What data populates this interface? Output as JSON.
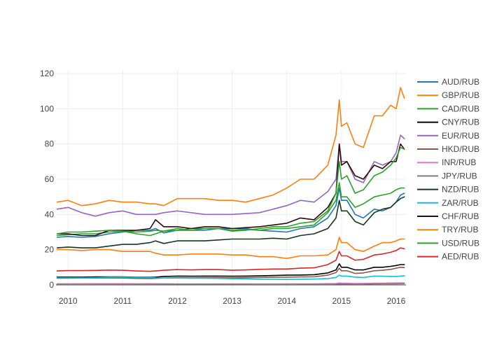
{
  "chart_data": {
    "type": "line",
    "title": "",
    "xlabel": "",
    "ylabel": "",
    "xlim": [
      2009.78,
      2016.18
    ],
    "ylim": [
      -2,
      122
    ],
    "x_ticks": [
      2010,
      2011,
      2012,
      2013,
      2014,
      2015,
      2016
    ],
    "x_tick_labels": [
      "2010",
      "2011",
      "2012",
      "2013",
      "2014",
      "2015",
      "2016"
    ],
    "y_ticks": [
      0,
      20,
      40,
      60,
      80,
      100,
      120
    ],
    "y_tick_labels": [
      "0",
      "20",
      "40",
      "60",
      "80",
      "100",
      "120"
    ],
    "grid": true,
    "legend_position": "right",
    "x": [
      2009.8,
      2010.0,
      2010.25,
      2010.5,
      2010.75,
      2011.0,
      2011.25,
      2011.5,
      2011.6,
      2011.75,
      2012.0,
      2012.25,
      2012.5,
      2012.75,
      2013.0,
      2013.25,
      2013.5,
      2013.75,
      2014.0,
      2014.25,
      2014.5,
      2014.75,
      2014.9,
      2014.96,
      2015.0,
      2015.1,
      2015.25,
      2015.4,
      2015.6,
      2015.75,
      2015.9,
      2016.0,
      2016.08,
      2016.15
    ],
    "series": [
      {
        "name": "AUD/RUB",
        "color": "#1f77b4",
        "values": [
          27,
          27.5,
          27,
          27.5,
          29,
          30,
          31,
          31,
          32,
          29.5,
          31,
          31,
          31,
          32,
          32,
          32,
          31,
          30.5,
          30,
          32,
          33,
          38,
          45,
          55,
          48,
          48,
          40,
          38,
          43,
          42,
          44,
          47,
          51,
          52
        ]
      },
      {
        "name": "GBP/RUB",
        "color": "#ff7f0e",
        "values": [
          47,
          48,
          45,
          46,
          48,
          47,
          47,
          46,
          46,
          45,
          49,
          49,
          49,
          48,
          48,
          47,
          49,
          51,
          55,
          60,
          60,
          68,
          85,
          105,
          90,
          92,
          80,
          78,
          96,
          96,
          102,
          100,
          112,
          106
        ]
      },
      {
        "name": "CAD/RUB",
        "color": "#2ca02c",
        "values": [
          28,
          28.5,
          29,
          29,
          30,
          30.5,
          30,
          30.5,
          31,
          30.5,
          31,
          32,
          32,
          32,
          31,
          31.5,
          31,
          32,
          32,
          33,
          34,
          41,
          48,
          58,
          50,
          50,
          44,
          46,
          50,
          51,
          52,
          54,
          55,
          55
        ]
      },
      {
        "name": "CNY/RUB",
        "color": "#000000",
        "values": [
          4.4,
          4.4,
          4.4,
          4.5,
          4.5,
          4.5,
          4.3,
          4.3,
          4.4,
          4.8,
          5.0,
          4.9,
          5.0,
          5.0,
          4.9,
          5.0,
          5.1,
          5.3,
          5.5,
          5.6,
          5.8,
          6.8,
          8.5,
          12,
          10,
          10,
          8.5,
          8.5,
          10,
          10,
          10.5,
          11,
          11.5,
          11.5
        ]
      },
      {
        "name": "EUR/RUB",
        "color": "#9467bd",
        "values": [
          43,
          44,
          41,
          39,
          41,
          42,
          40,
          40,
          40,
          41,
          42,
          41,
          40,
          40,
          40,
          40.5,
          41,
          43,
          45,
          48,
          47,
          53,
          60,
          80,
          70,
          70,
          60,
          58,
          70,
          68,
          70,
          75,
          85,
          83
        ]
      },
      {
        "name": "HKD/RUB",
        "color": "#8c564b",
        "values": [
          3.8,
          3.8,
          3.9,
          3.9,
          4.0,
          3.9,
          3.7,
          3.6,
          3.7,
          3.9,
          4.1,
          4.0,
          4.1,
          4.1,
          4.0,
          4.1,
          4.2,
          4.3,
          4.4,
          4.5,
          4.6,
          5.5,
          7.0,
          9.5,
          8.0,
          8.0,
          6.5,
          6.8,
          8.0,
          8.3,
          8.8,
          9.5,
          10.0,
          9.8
        ]
      },
      {
        "name": "INR/RUB",
        "color": "#e377c2",
        "values": [
          0.62,
          0.63,
          0.64,
          0.65,
          0.68,
          0.68,
          0.64,
          0.65,
          0.66,
          0.62,
          0.6,
          0.58,
          0.57,
          0.58,
          0.57,
          0.57,
          0.52,
          0.52,
          0.54,
          0.57,
          0.58,
          0.7,
          0.8,
          1.1,
          0.95,
          0.95,
          0.8,
          0.82,
          0.95,
          0.98,
          1.05,
          1.1,
          1.15,
          1.1
        ]
      },
      {
        "name": "JPY/RUB",
        "color": "#7f7f7f",
        "values": [
          0.33,
          0.32,
          0.32,
          0.34,
          0.36,
          0.36,
          0.35,
          0.36,
          0.37,
          0.39,
          0.4,
          0.38,
          0.39,
          0.37,
          0.35,
          0.33,
          0.32,
          0.32,
          0.32,
          0.33,
          0.33,
          0.36,
          0.42,
          0.55,
          0.45,
          0.45,
          0.4,
          0.42,
          0.55,
          0.57,
          0.6,
          0.62,
          0.68,
          0.7
        ]
      },
      {
        "name": "NZD/RUB",
        "color": "#17361a",
        "values": [
          21,
          21.5,
          21,
          21,
          22,
          23,
          23,
          24,
          25,
          23.5,
          25,
          25,
          25,
          25.5,
          26,
          26,
          26,
          26.5,
          26,
          28,
          29,
          32,
          38,
          48,
          42,
          42,
          36,
          34,
          41,
          43,
          44,
          47,
          49,
          50
        ]
      },
      {
        "name": "ZAR/RUB",
        "color": "#17becf",
        "values": [
          4.0,
          4.0,
          4.0,
          4.1,
          4.3,
          4.4,
          4.2,
          4.2,
          4.0,
          3.9,
          3.9,
          3.8,
          3.8,
          3.7,
          3.5,
          3.4,
          3.2,
          3.2,
          3.1,
          3.2,
          3.3,
          3.6,
          4.2,
          5.5,
          5.0,
          5.0,
          4.4,
          4.2,
          5.0,
          4.9,
          4.8,
          4.8,
          5.0,
          5.1
        ]
      },
      {
        "name": "CHF/RUB",
        "color": "#2b0a0a",
        "values": [
          29,
          29,
          28,
          28,
          31,
          31,
          31,
          32,
          37,
          33,
          33,
          32,
          33,
          33,
          32,
          32.5,
          33,
          34,
          35,
          38,
          37,
          44,
          52,
          80,
          68,
          70,
          62,
          60,
          68,
          66,
          70,
          70,
          80,
          77
        ]
      },
      {
        "name": "TRY/RUB",
        "color": "#ff7f0e",
        "values": [
          20,
          20,
          19.5,
          20,
          20,
          19,
          19,
          19,
          18,
          17,
          17,
          17.5,
          17.5,
          17.5,
          17,
          17,
          16,
          16,
          15,
          16.5,
          16.5,
          17,
          20,
          27,
          24,
          24,
          20,
          19,
          22,
          24,
          24,
          25,
          26,
          26
        ]
      },
      {
        "name": "USD/RUB",
        "color": "#2ca02c",
        "values": [
          29,
          30,
          30,
          30.5,
          31,
          30.5,
          29,
          28,
          29,
          30.5,
          32,
          31,
          32,
          32,
          30.5,
          31,
          32,
          33,
          33,
          35,
          36,
          42,
          52,
          70,
          60,
          62,
          52,
          54,
          62,
          64,
          68,
          72,
          78,
          77
        ]
      },
      {
        "name": "AED/RUB",
        "color": "#d62728",
        "values": [
          7.9,
          8.1,
          8.1,
          8.2,
          8.4,
          8.3,
          7.9,
          7.7,
          7.9,
          8.3,
          8.7,
          8.5,
          8.7,
          8.7,
          8.3,
          8.5,
          8.8,
          9.0,
          9.0,
          9.5,
          9.7,
          11.5,
          14,
          19,
          16.5,
          16.5,
          14,
          14.5,
          17,
          17.5,
          18.5,
          19.5,
          21,
          20.5
        ]
      }
    ]
  }
}
